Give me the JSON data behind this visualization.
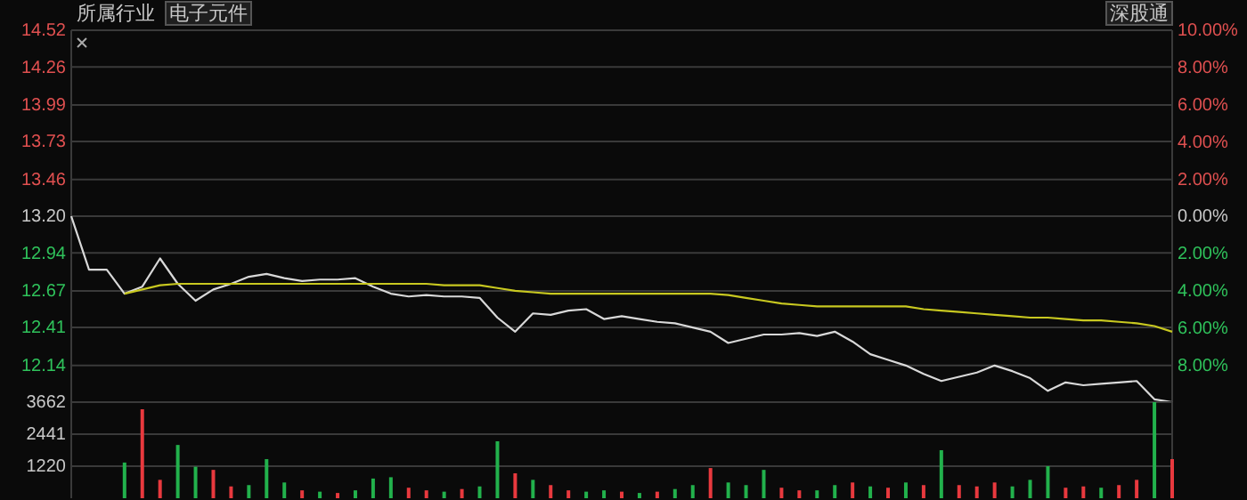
{
  "chart_data": [
    {
      "type": "line",
      "title": "所属行业",
      "subtitle": "电子元件",
      "annotations": [
        "深股通"
      ],
      "categories": [
        null,
        null,
        null,
        null,
        null,
        null,
        null,
        null,
        null,
        null,
        null,
        null,
        null,
        null,
        null,
        null,
        null,
        null,
        null,
        null,
        null,
        null,
        null,
        null,
        null,
        null,
        null,
        null,
        null,
        null,
        null,
        null,
        null,
        null,
        null,
        null,
        null,
        null,
        null,
        null,
        null,
        null,
        null,
        null,
        null,
        null,
        null,
        null,
        null,
        null,
        null,
        null,
        null,
        null,
        null,
        null,
        null,
        null,
        null,
        null,
        null,
        null,
        null
      ],
      "series": [
        {
          "color": "#d8d8d8",
          "values": [
            13.2,
            12.82,
            12.82,
            12.65,
            12.7,
            12.9,
            12.72,
            12.6,
            12.68,
            12.72,
            12.77,
            12.79,
            12.76,
            12.74,
            12.75,
            12.75,
            12.76,
            12.7,
            12.65,
            12.63,
            12.64,
            12.63,
            12.63,
            12.62,
            12.48,
            12.38,
            12.51,
            12.5,
            12.53,
            12.54,
            12.47,
            12.49,
            12.47,
            12.45,
            12.44,
            12.41,
            12.38,
            12.3,
            12.33,
            12.36,
            12.36,
            12.37,
            12.35,
            12.38,
            12.31,
            12.22,
            12.18,
            12.14,
            12.08,
            12.03,
            12.06,
            12.09,
            12.14,
            12.1,
            12.05,
            11.96,
            12.02,
            12.0,
            12.01,
            12.02,
            12.03,
            11.9,
            11.88
          ]
        },
        {
          "color": "#c8c820",
          "values": [
            null,
            null,
            null,
            12.65,
            12.68,
            12.71,
            12.72,
            12.72,
            12.72,
            12.72,
            12.72,
            12.72,
            12.72,
            12.72,
            12.72,
            12.72,
            12.72,
            12.72,
            12.72,
            12.72,
            12.72,
            12.71,
            12.71,
            12.71,
            12.69,
            12.67,
            12.66,
            12.65,
            12.65,
            12.65,
            12.65,
            12.65,
            12.65,
            12.65,
            12.65,
            12.65,
            12.65,
            12.64,
            12.62,
            12.6,
            12.58,
            12.57,
            12.56,
            12.56,
            12.56,
            12.56,
            12.56,
            12.56,
            12.54,
            12.53,
            12.52,
            12.51,
            12.5,
            12.49,
            12.48,
            12.48,
            12.47,
            12.46,
            12.46,
            12.45,
            12.44,
            12.42,
            12.38
          ]
        }
      ],
      "ylim": [
        11.88,
        14.52
      ],
      "yticks": [
        12.14,
        12.41,
        12.67,
        12.94,
        {
          "value": 13.2,
          "label": "13.20"
        },
        13.46,
        13.73,
        13.99,
        14.26,
        14.52
      ],
      "y2lim": [
        -10,
        10
      ],
      "y2ticks": [
        {
          "value": -8,
          "label": "8.00%"
        },
        {
          "value": -6,
          "label": "6.00%"
        },
        {
          "value": -4,
          "label": "4.00%"
        },
        {
          "value": -2,
          "label": "2.00%"
        },
        {
          "value": 0,
          "label": "0.00%"
        },
        {
          "value": 2,
          "label": "2.00%"
        },
        {
          "value": 4,
          "label": "4.00%"
        },
        {
          "value": 6,
          "label": "6.00%"
        },
        {
          "value": 8,
          "label": "8.00%"
        },
        {
          "value": 10,
          "label": "10.00%"
        }
      ],
      "grid": "y",
      "tick_labels": "y",
      "line_style": "solid",
      "marker": "none"
    },
    {
      "type": "bar",
      "categories": [
        null,
        null,
        null,
        null,
        null,
        null,
        null,
        null,
        null,
        null,
        null,
        null,
        null,
        null,
        null,
        null,
        null,
        null,
        null,
        null,
        null,
        null,
        null,
        null,
        null,
        null,
        null,
        null,
        null,
        null,
        null,
        null,
        null,
        null,
        null,
        null,
        null,
        null,
        null,
        null,
        null,
        null,
        null,
        null,
        null,
        null,
        null,
        null,
        null,
        null,
        null,
        null,
        null,
        null,
        null,
        null,
        null,
        null,
        null,
        null,
        null,
        null,
        null
      ],
      "values": [
        null,
        null,
        null,
        1360,
        3390,
        700,
        2030,
        1200,
        1080,
        450,
        500,
        1490,
        600,
        300,
        250,
        200,
        300,
        750,
        800,
        400,
        300,
        250,
        350,
        450,
        2170,
        950,
        700,
        500,
        300,
        250,
        300,
        250,
        200,
        250,
        350,
        500,
        1150,
        600,
        500,
        1080,
        400,
        300,
        300,
        500,
        600,
        450,
        400,
        600,
        500,
        1830,
        500,
        450,
        600,
        450,
        700,
        1220,
        400,
        450,
        400,
        500,
        700,
        3662,
        1490
      ],
      "colors": [
        null,
        null,
        null,
        "#22b14c",
        "#e8393e",
        "#e8393e",
        "#22b14c",
        "#22b14c",
        "#e8393e",
        "#e8393e",
        "#22b14c",
        "#22b14c",
        "#22b14c",
        "#e8393e",
        "#22b14c",
        "#e8393e",
        "#22b14c",
        "#22b14c",
        "#22b14c",
        "#e8393e",
        "#e8393e",
        "#22b14c",
        "#e8393e",
        "#22b14c",
        "#22b14c",
        "#e8393e",
        "#22b14c",
        "#e8393e",
        "#e8393e",
        "#22b14c",
        "#22b14c",
        "#e8393e",
        "#22b14c",
        "#e8393e",
        "#22b14c",
        "#22b14c",
        "#e8393e",
        "#22b14c",
        "#22b14c",
        "#22b14c",
        "#e8393e",
        "#e8393e",
        "#22b14c",
        "#22b14c",
        "#e8393e",
        "#22b14c",
        "#e8393e",
        "#22b14c",
        "#e8393e",
        "#22b14c",
        "#e8393e",
        "#e8393e",
        "#e8393e",
        "#22b14c",
        "#22b14c",
        "#22b14c",
        "#e8393e",
        "#e8393e",
        "#22b14c",
        "#e8393e",
        "#e8393e",
        "#22b14c",
        "#e8393e"
      ],
      "ylim": [
        0,
        3662
      ],
      "yticks": [
        1220,
        2441,
        3662
      ],
      "grid": "y",
      "tick_labels": "y"
    }
  ]
}
